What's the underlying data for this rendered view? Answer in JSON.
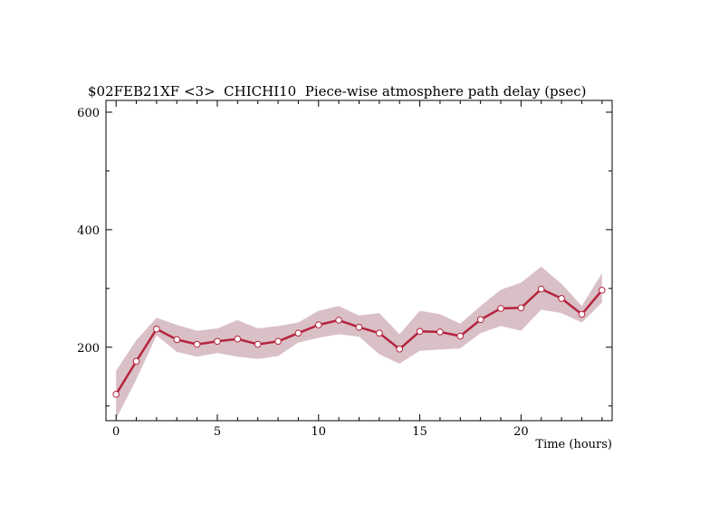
{
  "chart_data": {
    "type": "line",
    "title": "$02FEB21XF <3>  CHICHI10  Piece-wise atmosphere path delay (psec)",
    "xlabel": "Time (hours)",
    "ylabel": "",
    "xlim": [
      -0.5,
      24.5
    ],
    "ylim": [
      75,
      620
    ],
    "x_ticks": [
      0,
      5,
      10,
      15,
      20
    ],
    "y_ticks": [
      200,
      400,
      600
    ],
    "x_minor_step": 1,
    "y_minor_step": 100,
    "grid": false,
    "colors": {
      "line": "#b5243e",
      "band": "#d9c0c6",
      "marker_fill": "#ffffff"
    },
    "series": [
      {
        "x": [
          0,
          1,
          2,
          3,
          4,
          5,
          6,
          7,
          8,
          9,
          10,
          11,
          12,
          13,
          14,
          15,
          16,
          17,
          18,
          19,
          20,
          21,
          22,
          23,
          24
        ],
        "values": [
          120,
          176,
          231,
          213,
          205,
          210,
          214,
          205,
          210,
          224,
          238,
          246,
          234,
          224,
          197,
          227,
          226,
          219,
          247,
          266,
          267,
          299,
          283,
          256,
          297
        ],
        "upper": [
          160,
          212,
          250,
          238,
          228,
          232,
          246,
          232,
          236,
          242,
          262,
          270,
          254,
          258,
          222,
          262,
          256,
          240,
          270,
          298,
          310,
          337,
          308,
          270,
          326
        ],
        "lower": [
          78,
          145,
          220,
          192,
          184,
          190,
          184,
          180,
          185,
          208,
          216,
          222,
          218,
          188,
          172,
          194,
          196,
          198,
          224,
          236,
          228,
          264,
          258,
          242,
          276
        ]
      }
    ]
  }
}
